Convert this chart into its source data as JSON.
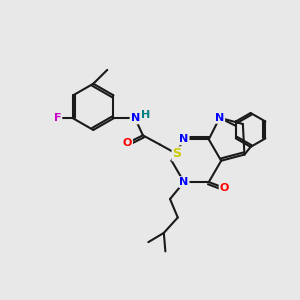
{
  "background_color": "#e8e8e8",
  "bond_color": "#1a1a1a",
  "atom_colors": {
    "N": "#0000ff",
    "O": "#ff0000",
    "F": "#cc00cc",
    "S": "#cccc00",
    "H": "#008080",
    "C": "#1a1a1a"
  },
  "figsize": [
    3.0,
    3.0
  ],
  "dpi": 100
}
